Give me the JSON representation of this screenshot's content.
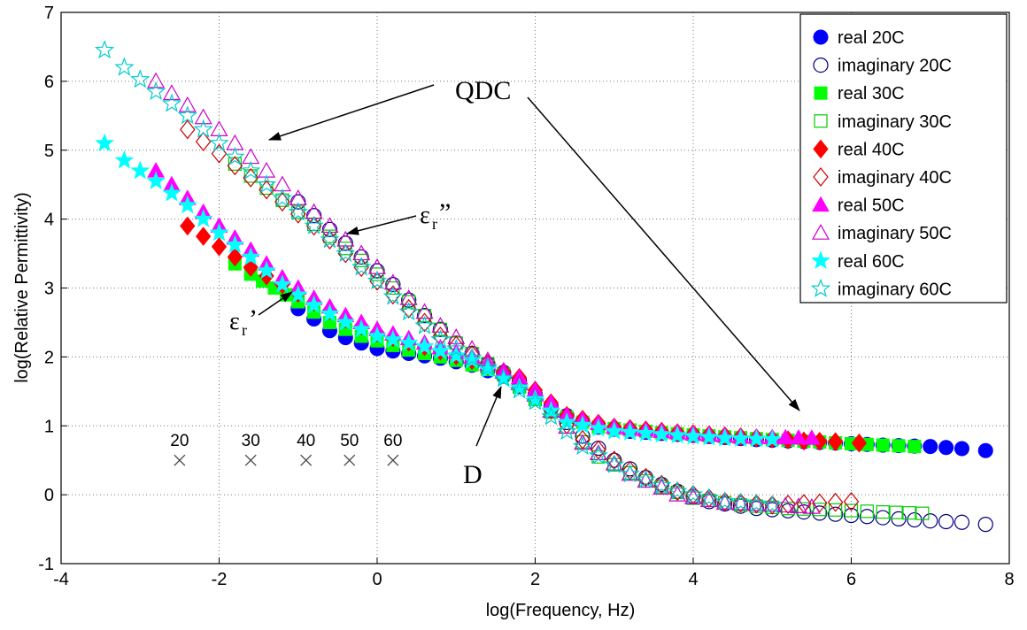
{
  "chart_data": {
    "type": "scatter",
    "xlabel": "log(Frequency, Hz)",
    "ylabel": "log(Relative Permittivity)",
    "xlim": [
      -4,
      8
    ],
    "ylim": [
      -1,
      7
    ],
    "xticks": [
      "-4",
      "-2",
      "0",
      "2",
      "4",
      "6",
      "8"
    ],
    "yticks": [
      "-1",
      "0",
      "1",
      "2",
      "3",
      "4",
      "5",
      "6",
      "7"
    ],
    "grid": true,
    "legend_position": "top-right",
    "series": [
      {
        "name": "real 20C",
        "color": "#0000ff",
        "marker": "circle",
        "filled": true,
        "points": [
          [
            -1.0,
            2.7
          ],
          [
            -0.8,
            2.55
          ],
          [
            -0.6,
            2.38
          ],
          [
            -0.4,
            2.28
          ],
          [
            -0.2,
            2.2
          ],
          [
            0,
            2.12
          ],
          [
            0.4,
            2.05
          ],
          [
            0.8,
            1.98
          ],
          [
            1.2,
            1.88
          ],
          [
            1.6,
            1.72
          ],
          [
            2.0,
            1.42
          ],
          [
            2.4,
            1.15
          ],
          [
            2.8,
            0.98
          ],
          [
            3.2,
            0.92
          ],
          [
            4.0,
            0.86
          ],
          [
            4.8,
            0.8
          ],
          [
            5.6,
            0.76
          ],
          [
            6.4,
            0.72
          ],
          [
            7.0,
            0.7
          ],
          [
            7.4,
            0.67
          ],
          [
            7.7,
            0.64
          ]
        ]
      },
      {
        "name": "imaginary 20C",
        "color": "#000080",
        "marker": "circle",
        "filled": false,
        "points": [
          [
            -1.0,
            4.25
          ],
          [
            -0.6,
            3.85
          ],
          [
            -0.2,
            3.45
          ],
          [
            0.2,
            3.05
          ],
          [
            0.6,
            2.6
          ],
          [
            1.0,
            2.2
          ],
          [
            1.4,
            1.9
          ],
          [
            1.8,
            1.65
          ],
          [
            2.2,
            1.25
          ],
          [
            2.6,
            0.85
          ],
          [
            3.0,
            0.5
          ],
          [
            3.4,
            0.25
          ],
          [
            3.8,
            0.05
          ],
          [
            4.2,
            -0.1
          ],
          [
            4.8,
            -0.2
          ],
          [
            5.4,
            -0.25
          ],
          [
            6.0,
            -0.3
          ],
          [
            6.6,
            -0.35
          ],
          [
            7.0,
            -0.38
          ],
          [
            7.4,
            -0.4
          ],
          [
            7.7,
            -0.43
          ]
        ]
      },
      {
        "name": "real 30C",
        "color": "#00ff00",
        "marker": "square",
        "filled": true,
        "points": [
          [
            -1.8,
            3.35
          ],
          [
            -1.6,
            3.2
          ],
          [
            -1.3,
            3.0
          ],
          [
            -1.0,
            2.8
          ],
          [
            -0.6,
            2.5
          ],
          [
            -0.2,
            2.3
          ],
          [
            0.4,
            2.1
          ],
          [
            1.0,
            1.95
          ],
          [
            1.6,
            1.75
          ],
          [
            2.2,
            1.2
          ],
          [
            2.8,
            0.98
          ],
          [
            3.6,
            0.9
          ],
          [
            4.4,
            0.84
          ],
          [
            5.2,
            0.79
          ],
          [
            6.0,
            0.74
          ],
          [
            6.4,
            0.72
          ],
          [
            6.8,
            0.7
          ]
        ]
      },
      {
        "name": "imaginary 30C",
        "color": "#00cc00",
        "marker": "square",
        "filled": false,
        "points": [
          [
            -1.8,
            4.8
          ],
          [
            -1.4,
            4.45
          ],
          [
            -1.0,
            4.1
          ],
          [
            -0.6,
            3.75
          ],
          [
            -0.2,
            3.4
          ],
          [
            0.2,
            3.0
          ],
          [
            0.6,
            2.6
          ],
          [
            1.0,
            2.2
          ],
          [
            1.6,
            1.75
          ],
          [
            2.2,
            1.2
          ],
          [
            2.8,
            0.55
          ],
          [
            3.4,
            0.2
          ],
          [
            4.0,
            -0.05
          ],
          [
            4.6,
            -0.15
          ],
          [
            5.2,
            -0.2
          ],
          [
            5.8,
            -0.22
          ],
          [
            6.4,
            -0.25
          ],
          [
            6.9,
            -0.27
          ]
        ]
      },
      {
        "name": "real 40C",
        "color": "#ff0000",
        "marker": "diamond",
        "filled": true,
        "points": [
          [
            -2.4,
            3.9
          ],
          [
            -2.0,
            3.6
          ],
          [
            -1.6,
            3.3
          ],
          [
            -1.2,
            3.05
          ],
          [
            -0.8,
            2.8
          ],
          [
            -0.4,
            2.55
          ],
          [
            0,
            2.35
          ],
          [
            0.6,
            2.15
          ],
          [
            1.2,
            1.95
          ],
          [
            1.8,
            1.7
          ],
          [
            2.4,
            1.15
          ],
          [
            3.0,
            0.98
          ],
          [
            3.8,
            0.9
          ],
          [
            4.6,
            0.84
          ],
          [
            5.4,
            0.78
          ],
          [
            5.8,
            0.77
          ],
          [
            6.1,
            0.75
          ]
        ]
      },
      {
        "name": "imaginary 40C",
        "color": "#cc0000",
        "marker": "diamond",
        "filled": false,
        "points": [
          [
            -2.4,
            5.3
          ],
          [
            -2.0,
            4.95
          ],
          [
            -1.6,
            4.6
          ],
          [
            -1.2,
            4.25
          ],
          [
            -0.8,
            3.9
          ],
          [
            -0.4,
            3.5
          ],
          [
            0,
            3.1
          ],
          [
            0.4,
            2.7
          ],
          [
            0.8,
            2.3
          ],
          [
            1.4,
            1.9
          ],
          [
            2.0,
            1.45
          ],
          [
            2.6,
            0.8
          ],
          [
            3.2,
            0.35
          ],
          [
            3.8,
            0.05
          ],
          [
            4.4,
            -0.1
          ],
          [
            5.0,
            -0.15
          ],
          [
            5.6,
            -0.12
          ],
          [
            6.0,
            -0.1
          ]
        ]
      },
      {
        "name": "real 50C",
        "color": "#ff00ff",
        "marker": "triangle",
        "filled": true,
        "points": [
          [
            -2.8,
            4.7
          ],
          [
            -2.4,
            4.3
          ],
          [
            -2.0,
            3.9
          ],
          [
            -1.6,
            3.55
          ],
          [
            -1.2,
            3.15
          ],
          [
            -0.8,
            2.85
          ],
          [
            -0.4,
            2.6
          ],
          [
            0,
            2.4
          ],
          [
            0.6,
            2.2
          ],
          [
            1.2,
            2.0
          ],
          [
            1.8,
            1.7
          ],
          [
            2.4,
            1.15
          ],
          [
            3.0,
            0.98
          ],
          [
            3.8,
            0.9
          ],
          [
            4.6,
            0.84
          ],
          [
            5.0,
            0.83
          ],
          [
            5.5,
            0.82
          ]
        ]
      },
      {
        "name": "imaginary 50C",
        "color": "#cc00cc",
        "marker": "triangle",
        "filled": false,
        "points": [
          [
            -2.8,
            6.0
          ],
          [
            -2.4,
            5.65
          ],
          [
            -2.0,
            5.3
          ],
          [
            -1.6,
            4.9
          ],
          [
            -1.2,
            4.5
          ],
          [
            -0.8,
            4.1
          ],
          [
            -0.4,
            3.7
          ],
          [
            0,
            3.3
          ],
          [
            0.4,
            2.85
          ],
          [
            0.8,
            2.45
          ],
          [
            1.4,
            1.95
          ],
          [
            2.0,
            1.45
          ],
          [
            2.6,
            0.75
          ],
          [
            3.2,
            0.3
          ],
          [
            3.8,
            0.0
          ],
          [
            4.4,
            -0.12
          ],
          [
            5.0,
            -0.15
          ],
          [
            5.5,
            -0.18
          ]
        ]
      },
      {
        "name": "real 60C",
        "color": "#00ffff",
        "marker": "star",
        "filled": true,
        "points": [
          [
            -3.45,
            5.1
          ],
          [
            -3.2,
            4.85
          ],
          [
            -2.8,
            4.55
          ],
          [
            -2.4,
            4.2
          ],
          [
            -2.0,
            3.8
          ],
          [
            -1.6,
            3.45
          ],
          [
            -1.2,
            3.05
          ],
          [
            -0.8,
            2.75
          ],
          [
            -0.4,
            2.5
          ],
          [
            0,
            2.3
          ],
          [
            0.6,
            2.15
          ],
          [
            1.2,
            1.95
          ],
          [
            1.8,
            1.55
          ],
          [
            2.4,
            1.05
          ],
          [
            3.0,
            0.92
          ],
          [
            3.8,
            0.86
          ],
          [
            4.4,
            0.82
          ],
          [
            5.0,
            0.8
          ]
        ]
      },
      {
        "name": "imaginary 60C",
        "color": "#00cccc",
        "marker": "star",
        "filled": false,
        "points": [
          [
            -3.45,
            6.45
          ],
          [
            -3.2,
            6.2
          ],
          [
            -2.8,
            5.85
          ],
          [
            -2.4,
            5.5
          ],
          [
            -2.0,
            5.1
          ],
          [
            -1.6,
            4.7
          ],
          [
            -1.2,
            4.3
          ],
          [
            -0.8,
            3.9
          ],
          [
            -0.4,
            3.5
          ],
          [
            0,
            3.1
          ],
          [
            0.4,
            2.65
          ],
          [
            0.8,
            2.25
          ],
          [
            1.4,
            1.85
          ],
          [
            2.0,
            1.35
          ],
          [
            2.6,
            0.7
          ],
          [
            3.2,
            0.3
          ],
          [
            3.8,
            0.05
          ],
          [
            4.4,
            -0.1
          ],
          [
            5.0,
            -0.15
          ]
        ]
      }
    ],
    "annotations": {
      "qdc": "QDC",
      "d": "D",
      "eps_imag_base": "ε",
      "eps_imag_sub": "r",
      "eps_imag_mark": "”",
      "eps_real_base": "ε",
      "eps_real_sub": "r",
      "eps_real_mark": "’"
    },
    "temperature_markers": [
      {
        "label": "20",
        "x": -2.5,
        "y": 0.5
      },
      {
        "label": "30",
        "x": -1.6,
        "y": 0.5
      },
      {
        "label": "40",
        "x": -0.9,
        "y": 0.5
      },
      {
        "label": "50",
        "x": -0.35,
        "y": 0.5
      },
      {
        "label": "60",
        "x": 0.2,
        "y": 0.5
      }
    ]
  }
}
